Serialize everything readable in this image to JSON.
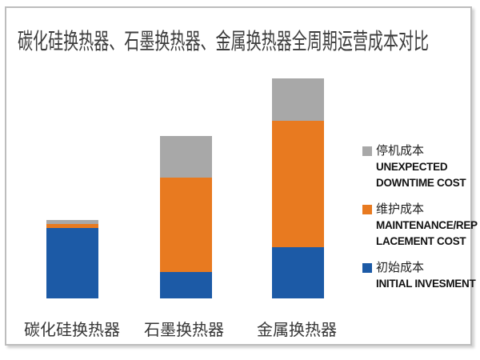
{
  "chart_data": {
    "type": "bar",
    "subtype": "stacked",
    "title": "碳化硅换热器、石墨换热器、金属换热器全周期运营成本对比",
    "categories": [
      "碳化硅换热器",
      "石墨换热器",
      "金属换热器"
    ],
    "series": [
      {
        "name": "初始成本",
        "name_en": "INITIAL INVESMENT",
        "color": "#1C5AA6",
        "values": [
          32,
          12,
          23.3
        ]
      },
      {
        "name": "维护成本",
        "name_en": "MAINTENANCE/REPLACEMENT COST",
        "color": "#E87A20",
        "values": [
          1.8,
          43,
          57.5
        ]
      },
      {
        "name": "停机成本",
        "name_en": "UNEXPECTED DOWNTIME COST",
        "color": "#A8A8A8",
        "values": [
          1.8,
          19,
          19.3
        ]
      }
    ],
    "units": "relative cost, estimated from bar heights (metal exchanger total = 100)",
    "totals": [
      35.6,
      74,
      100
    ],
    "xlabel": "",
    "ylabel": "",
    "axes_visible": false,
    "grid": false,
    "legend_position": "right"
  },
  "legend": {
    "items": [
      {
        "zh": "停机成本",
        "en_lines": [
          "UNEXPECTED",
          "DOWNTIME COST"
        ],
        "color": "#A8A8A8"
      },
      {
        "zh": "维护成本",
        "en_lines": [
          "MAINTENANCE/REP",
          "LACEMENT COST"
        ],
        "color": "#E87A20"
      },
      {
        "zh": "初始成本",
        "en_lines": [
          "INITIAL INVESMENT"
        ],
        "color": "#1C5AA6"
      }
    ]
  },
  "colors": {
    "initial_cost_blue": "#1C5AA6",
    "maintenance_orange": "#E87A20",
    "downtime_gray": "#A8A8A8",
    "frame_border": "#BDBDBD",
    "title_text": "#3C3C3C"
  }
}
